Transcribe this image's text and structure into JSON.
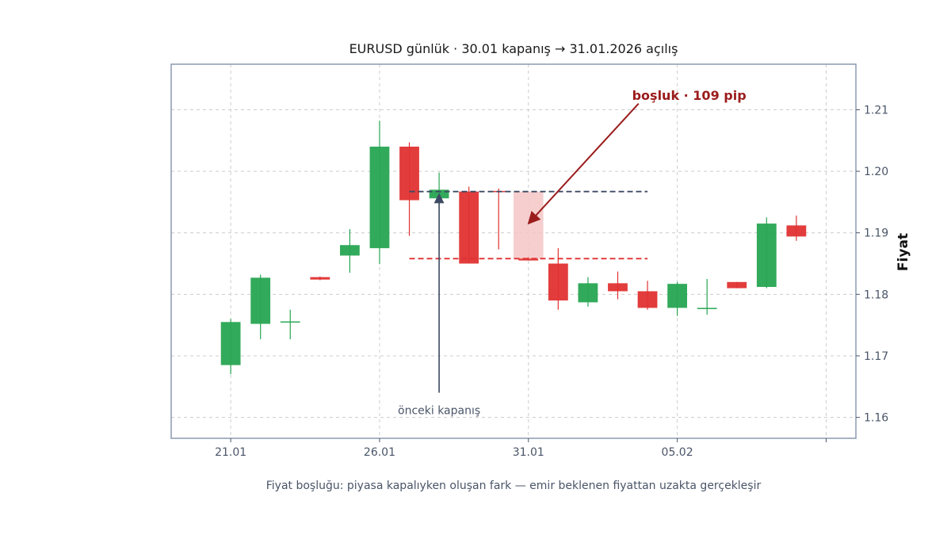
{
  "chart_data": {
    "type": "candlestick",
    "title": "EURUSD günlük · 30.01 kapanış → 31.01.2026 açılış",
    "ylabel": "Fiyat",
    "caption": "Fiyat boşluğu: piyasa kapalıyken oluşan fark — emir beklenen fiyattan uzakta gerçekleşir",
    "ylim": [
      1.1566,
      1.2174
    ],
    "xlim": [
      19,
      42
    ],
    "y_ticks": [
      1.16,
      1.17,
      1.18,
      1.19,
      1.2,
      1.21
    ],
    "y_tick_labels": [
      "1.16",
      "1.17",
      "1.18",
      "1.19",
      "1.20",
      "1.21"
    ],
    "x_ticks": [
      21,
      26,
      31,
      36,
      41
    ],
    "x_tick_labels": [
      "21.01",
      "26.01",
      "31.01",
      "05.02",
      ""
    ],
    "grid": true,
    "colors": {
      "up": "#27a552",
      "down": "#e03131",
      "gap_fill": "#f5c6c6",
      "prev_close_line": "#3d4a63",
      "gap_line": "#e03131",
      "annotation_red": "#9b1c1c",
      "annotation_gray": "#4a5568",
      "frame": "#8a9ab0"
    },
    "candles": [
      {
        "x": 21,
        "open": 1.1685,
        "high": 1.176,
        "low": 1.167,
        "close": 1.1755
      },
      {
        "x": 22,
        "open": 1.1752,
        "high": 1.1832,
        "low": 1.1727,
        "close": 1.1827
      },
      {
        "x": 23,
        "open": 1.1754,
        "high": 1.1775,
        "low": 1.1727,
        "close": 1.1756
      },
      {
        "x": 24,
        "open": 1.1828,
        "high": 1.1829,
        "low": 1.1823,
        "close": 1.1824
      },
      {
        "x": 25,
        "open": 1.1863,
        "high": 1.1906,
        "low": 1.1835,
        "close": 1.188
      },
      {
        "x": 26,
        "open": 1.1875,
        "high": 1.2082,
        "low": 1.1849,
        "close": 1.204
      },
      {
        "x": 27,
        "open": 1.204,
        "high": 1.2047,
        "low": 1.1895,
        "close": 1.1953
      },
      {
        "x": 28,
        "open": 1.1956,
        "high": 1.1998,
        "low": 1.1905,
        "close": 1.197
      },
      {
        "x": 29,
        "open": 1.1967,
        "high": 1.1975,
        "low": 1.185,
        "close": 1.185
      },
      {
        "x": 30,
        "open": 1.1968,
        "high": 1.1972,
        "low": 1.1873,
        "close": 1.1967
      },
      {
        "x": 31,
        "open": 1.1858,
        "high": 1.186,
        "low": 1.1855,
        "close": 1.1855
      },
      {
        "x": 32,
        "open": 1.185,
        "high": 1.1875,
        "low": 1.1775,
        "close": 1.179
      },
      {
        "x": 33,
        "open": 1.1787,
        "high": 1.1828,
        "low": 1.178,
        "close": 1.1818
      },
      {
        "x": 34,
        "open": 1.1818,
        "high": 1.1837,
        "low": 1.1792,
        "close": 1.1805
      },
      {
        "x": 35,
        "open": 1.1805,
        "high": 1.1822,
        "low": 1.1775,
        "close": 1.1778
      },
      {
        "x": 36,
        "open": 1.1778,
        "high": 1.182,
        "low": 1.1765,
        "close": 1.1817
      },
      {
        "x": 37,
        "open": 1.1776,
        "high": 1.1825,
        "low": 1.1767,
        "close": 1.1778
      },
      {
        "x": 38,
        "open": 1.182,
        "high": 1.182,
        "low": 1.181,
        "close": 1.181
      },
      {
        "x": 39,
        "open": 1.1812,
        "high": 1.1925,
        "low": 1.181,
        "close": 1.1915
      },
      {
        "x": 40,
        "open": 1.1912,
        "high": 1.1928,
        "low": 1.1887,
        "close": 1.1894
      }
    ],
    "prev_close_level": 1.1967,
    "gap_open_level": 1.1858,
    "level_lines_x": [
      27,
      35
    ],
    "gap_zone": {
      "x": 31,
      "top": 1.1967,
      "bottom": 1.1858
    },
    "annotations": {
      "gap": {
        "text": "boşluk · 109 pip",
        "text_at": [
          36.4,
          1.2124
        ],
        "arrow_from": [
          34.7,
          1.211
        ],
        "arrow_to": [
          31.0,
          1.1915
        ]
      },
      "prev_close": {
        "text": "önceki kapanış",
        "text_at": [
          28.0,
          1.1613
        ],
        "arrow_from": [
          28.0,
          1.164
        ],
        "arrow_to": [
          28.0,
          1.1963
        ]
      }
    }
  }
}
